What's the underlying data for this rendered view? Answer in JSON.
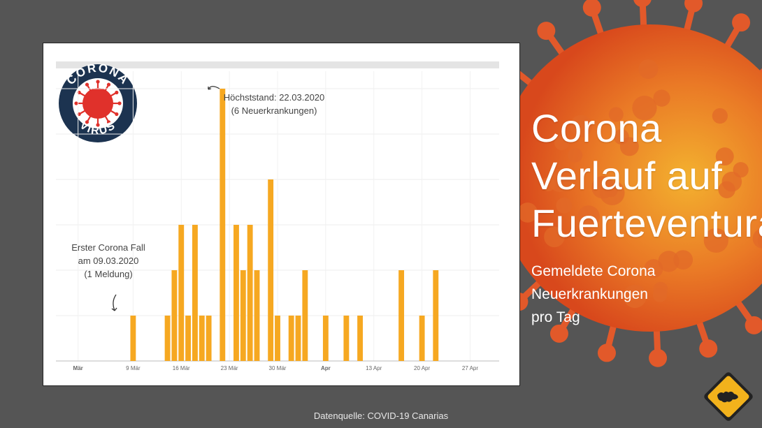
{
  "title_lines": [
    "Corona",
    "Verlauf auf",
    "Fuerteventura"
  ],
  "subtitle_lines": [
    "Gemeldete Corona",
    "Neuerkrankungen",
    "pro Tag"
  ],
  "source_text": "Datenquelle: COVID-19 Canarias",
  "logo": {
    "top_text": "CORONA",
    "bottom_text": "VIRUS"
  },
  "colors": {
    "background": "#555555",
    "bar": "#f6a821",
    "virus_outer": "#e04e1e",
    "virus_inner": "#f3a62b",
    "logo_navy": "#1c3350",
    "logo_red": "#e0312b"
  },
  "icons": [
    "corona-virus-logo-icon",
    "virus-illustration-icon",
    "map-warning-badge-icon"
  ],
  "annotations": {
    "peak": [
      "Höchststand: 22.03.2020",
      "(6 Neuerkrankungen)"
    ],
    "first": [
      "Erster Corona Fall",
      "am 09.03.2020",
      "(1 Meldung)"
    ]
  },
  "chart_data": {
    "type": "bar",
    "title": "Corona Verlauf auf Fuerteventura",
    "ylabel": "",
    "ylim": [
      0,
      6
    ],
    "x_tick_labels": [
      "Mär",
      "9 Mär",
      "16 Mär",
      "23 Mär",
      "30 Mär",
      "Apr",
      "13 Apr",
      "20 Apr",
      "27 Apr"
    ],
    "x_tick_dates": [
      "2020-03-01",
      "2020-03-09",
      "2020-03-16",
      "2020-03-23",
      "2020-03-30",
      "2020-04-06",
      "2020-04-13",
      "2020-04-20",
      "2020-04-27"
    ],
    "x_range": [
      "2020-02-28",
      "2020-04-30"
    ],
    "x": [
      "2020-03-09",
      "2020-03-14",
      "2020-03-15",
      "2020-03-16",
      "2020-03-17",
      "2020-03-18",
      "2020-03-19",
      "2020-03-20",
      "2020-03-22",
      "2020-03-24",
      "2020-03-25",
      "2020-03-26",
      "2020-03-27",
      "2020-03-29",
      "2020-03-30",
      "2020-04-01",
      "2020-04-02",
      "2020-04-03",
      "2020-04-06",
      "2020-04-09",
      "2020-04-11",
      "2020-04-17",
      "2020-04-20",
      "2020-04-22"
    ],
    "values": [
      1,
      1,
      2,
      3,
      1,
      3,
      1,
      1,
      6,
      3,
      2,
      3,
      2,
      4,
      1,
      1,
      1,
      2,
      1,
      1,
      1,
      2,
      1,
      2
    ]
  }
}
